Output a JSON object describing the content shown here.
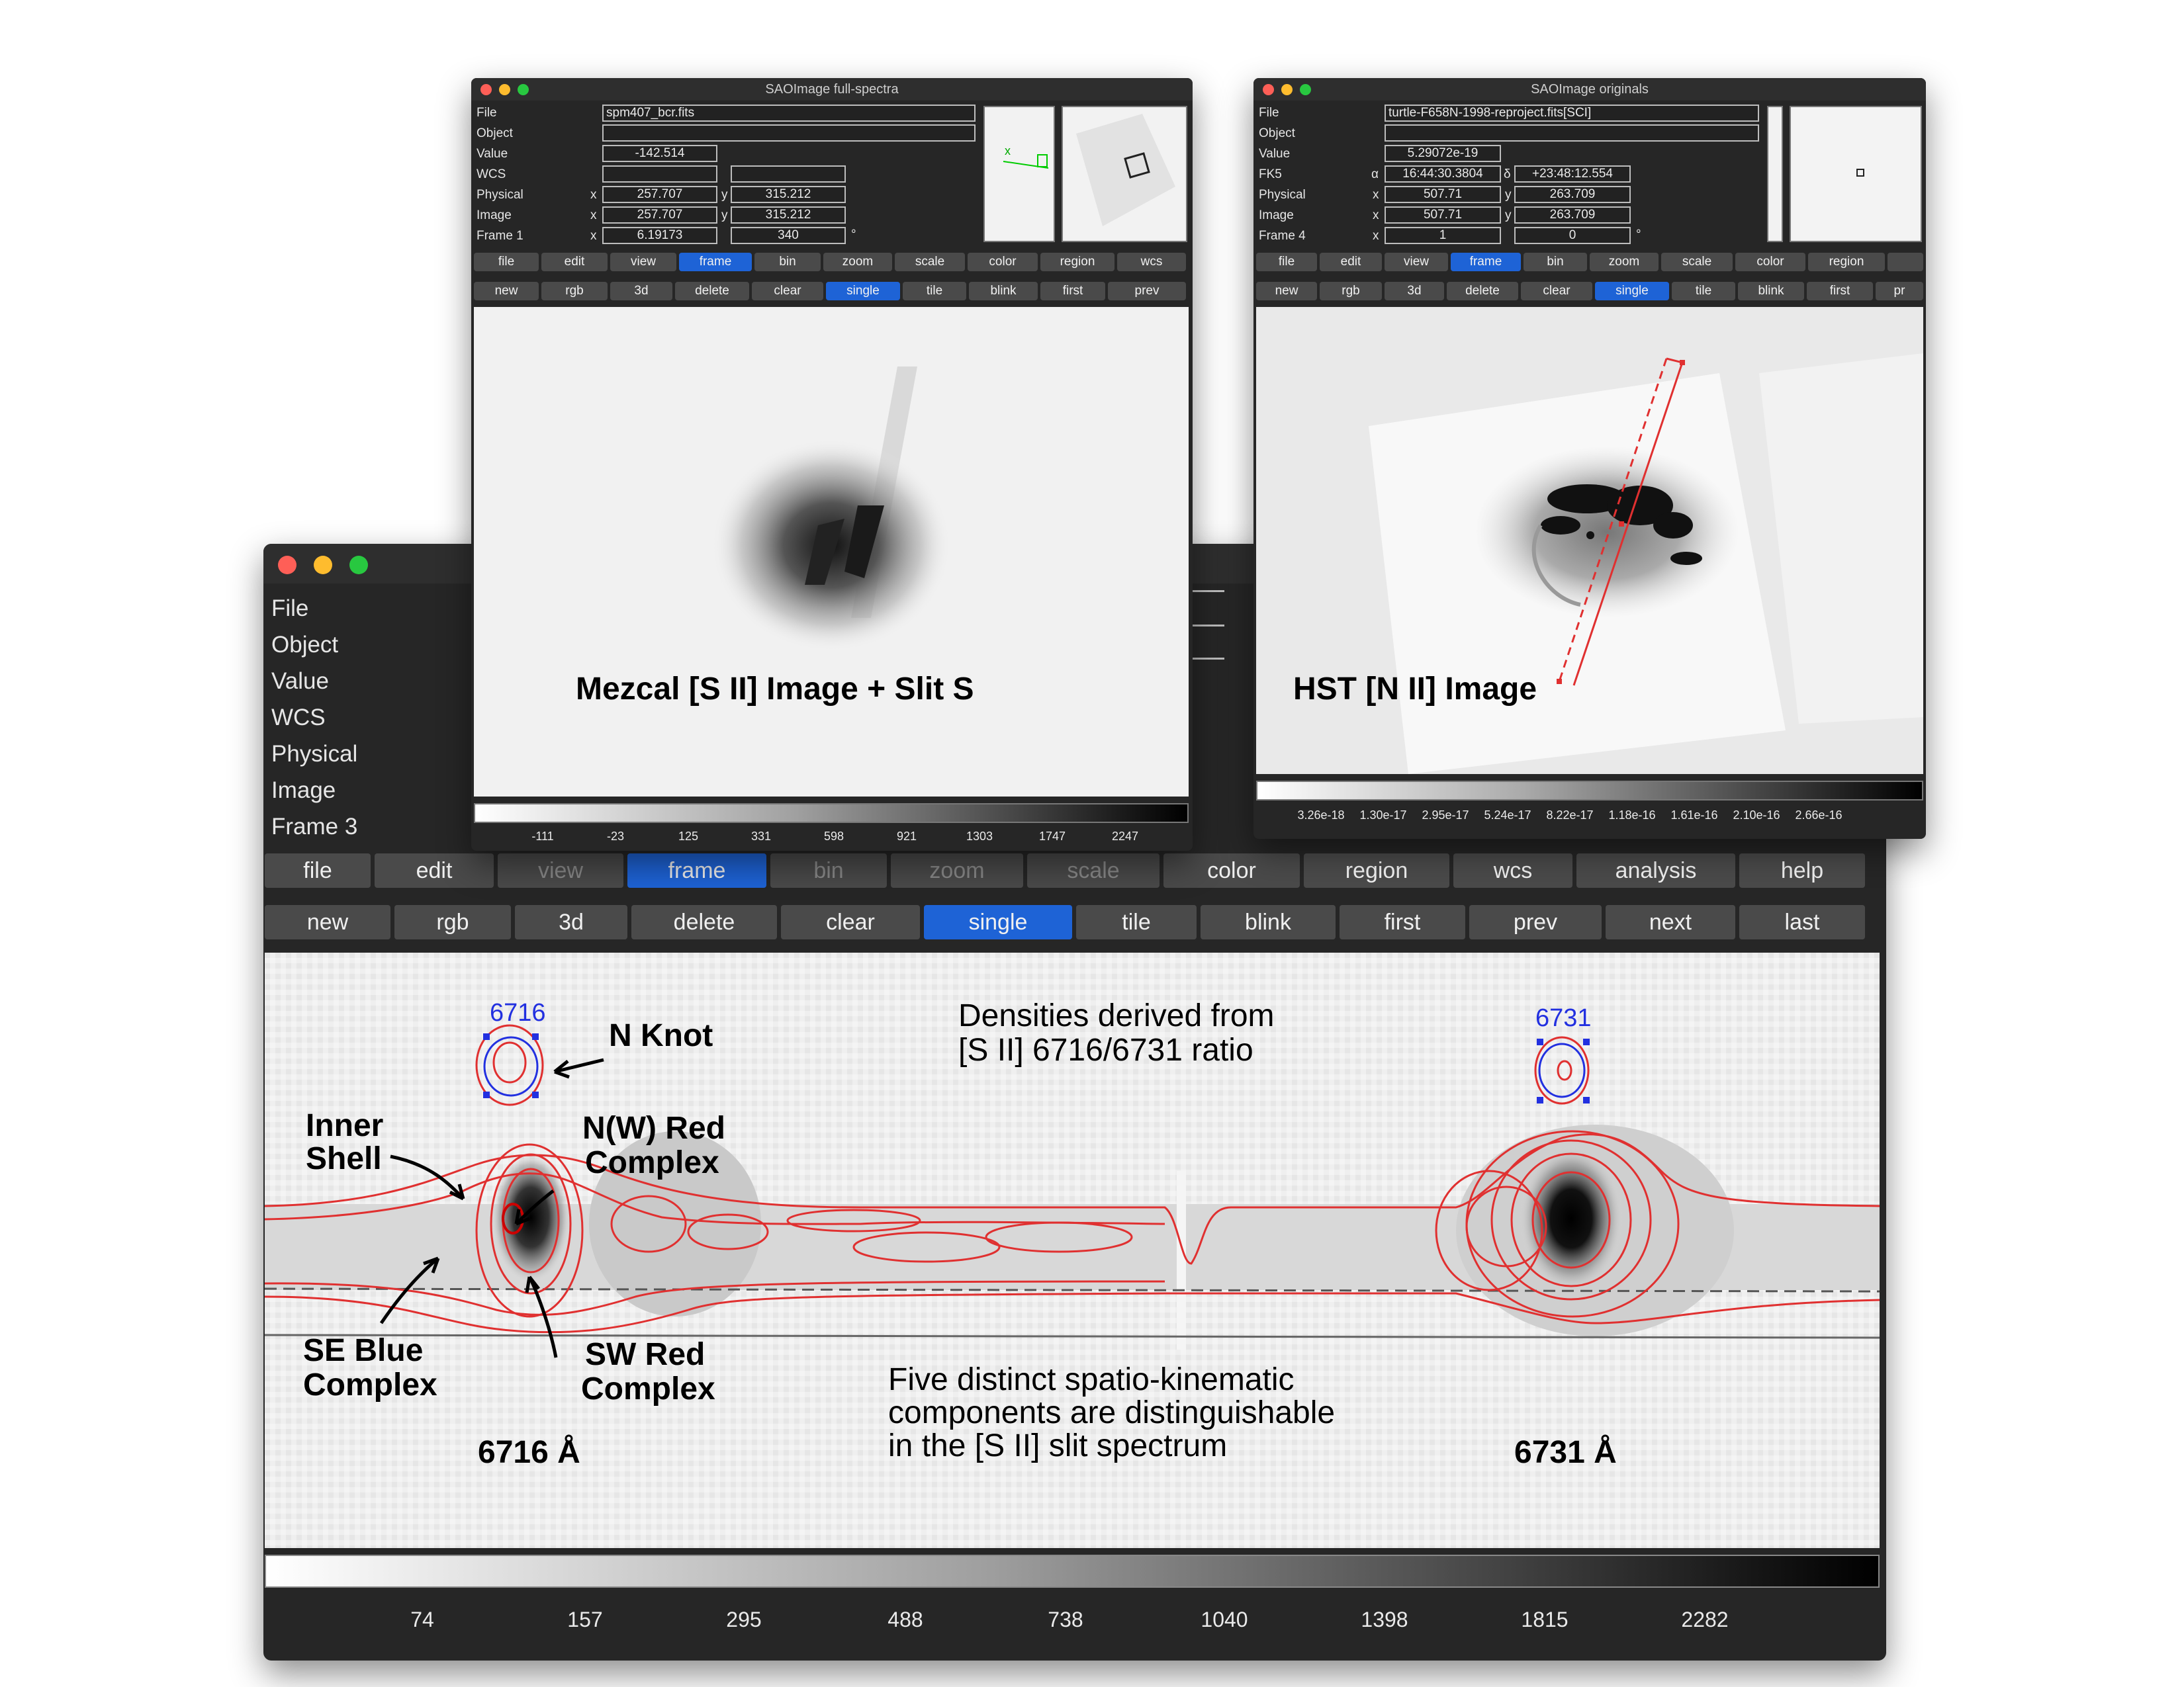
{
  "info_labels_main": [
    "File",
    "Object",
    "Value",
    "WCS",
    "Physical",
    "Image",
    "Frame 3"
  ],
  "main_menu": [
    "file",
    "edit",
    "view",
    "frame",
    "bin",
    "zoom",
    "scale",
    "color",
    "region",
    "wcs",
    "analysis",
    "help"
  ],
  "main_buttons": [
    "new",
    "rgb",
    "3d",
    "delete",
    "clear",
    "single",
    "tile",
    "blink",
    "first",
    "prev",
    "next",
    "last"
  ],
  "main_colorbar_ticks": [
    "74",
    "157",
    "295",
    "488",
    "738",
    "1040",
    "1398",
    "1815",
    "2282"
  ],
  "annotations": {
    "lbl_6716_top": "6716",
    "lbl_6731_top": "6731",
    "n_knot": "N Knot",
    "inner_shell_1": "Inner",
    "inner_shell_2": "Shell",
    "nw_red_1": "N(W) Red",
    "nw_red_2": "Complex",
    "se_blue_1": "SE Blue",
    "se_blue_2": "Complex",
    "sw_red_1": "SW Red",
    "sw_red_2": "Complex",
    "wave_6716": "6716 Å",
    "wave_6731": "6731 Å",
    "densities_1": "Densities derived from",
    "densities_2": "[S II] 6716/6731 ratio",
    "five_1": "Five distinct spatio-kinematic",
    "five_2": "components are distinguishable",
    "five_3": "in the [S II] slit spectrum"
  },
  "w1": {
    "title": "SAOImage full-spectra",
    "labels": [
      "File",
      "Object",
      "Value",
      "WCS",
      "Physical",
      "Image",
      "Frame 1"
    ],
    "file": "spm407_bcr.fits",
    "object": "",
    "value": "-142.514",
    "wcs": "",
    "axis_x": "x",
    "axis_y": "y",
    "physical_x": "257.707",
    "physical_y": "315.212",
    "image_x": "257.707",
    "image_y": "315.212",
    "frame_a": "6.19173",
    "frame_b": "340",
    "frame_unit": "°",
    "thumb_axis": "x",
    "menu": [
      "file",
      "edit",
      "view",
      "frame",
      "bin",
      "zoom",
      "scale",
      "color",
      "region",
      "wcs"
    ],
    "buttons": [
      "new",
      "rgb",
      "3d",
      "delete",
      "clear",
      "single",
      "tile",
      "blink",
      "first",
      "prev"
    ],
    "overlay": "Mezcal [S II] Image + Slit S",
    "ticks": [
      "-111",
      "-23",
      "125",
      "331",
      "598",
      "921",
      "1303",
      "1747",
      "2247"
    ]
  },
  "w2": {
    "title": "SAOImage originals",
    "labels": [
      "File",
      "Object",
      "Value",
      "FK5",
      "Physical",
      "Image",
      "Frame 4"
    ],
    "file": "turtle-F658N-1998-reproject.fits[SCI]",
    "object": "",
    "value": "5.29072e-19",
    "alpha_sym": "α",
    "delta_sym": "δ",
    "ra": "16:44:30.3804",
    "dec": "+23:48:12.554",
    "axis_x": "x",
    "axis_y": "y",
    "physical_x": "507.71",
    "physical_y": "263.709",
    "image_x": "507.71",
    "image_y": "263.709",
    "frame_a": "1",
    "frame_b": "0",
    "frame_unit": "°",
    "menu": [
      "file",
      "edit",
      "view",
      "frame",
      "bin",
      "zoom",
      "scale",
      "color",
      "region"
    ],
    "buttons": [
      "new",
      "rgb",
      "3d",
      "delete",
      "clear",
      "single",
      "tile",
      "blink",
      "first",
      "pr"
    ],
    "overlay": "HST [N II] Image",
    "ticks": [
      "3.26e-18",
      "1.30e-17",
      "2.95e-17",
      "5.24e-17",
      "8.22e-17",
      "1.18e-16",
      "1.61e-16",
      "2.10e-16",
      "2.66e-16"
    ]
  }
}
